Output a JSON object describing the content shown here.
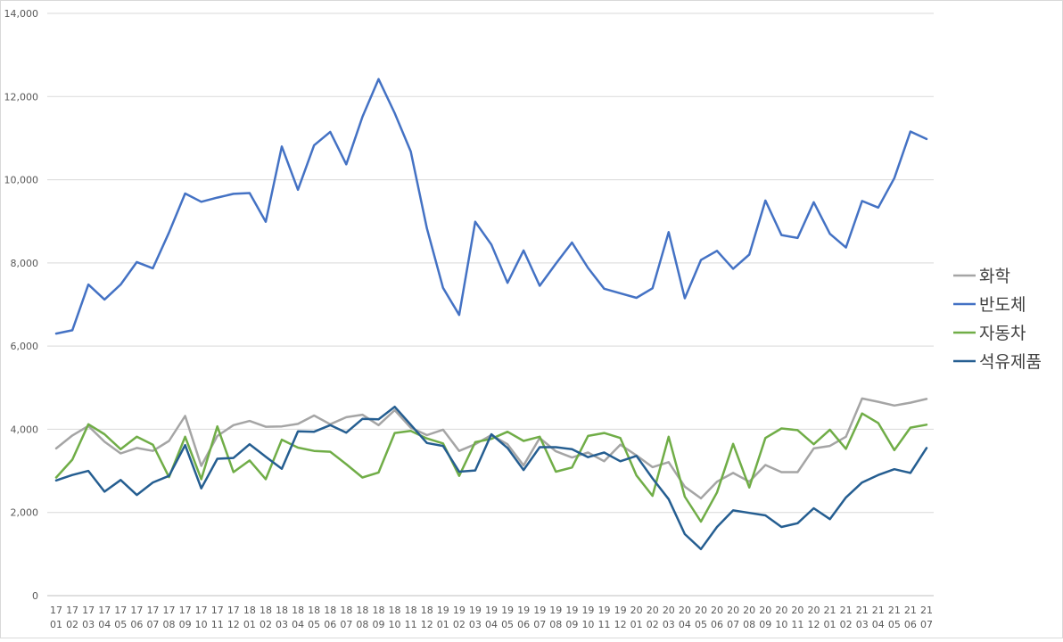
{
  "chart_data": {
    "type": "line",
    "title": "",
    "xlabel": "",
    "ylabel": "",
    "ylim": [
      0,
      14000
    ],
    "yticks": [
      0,
      2000,
      4000,
      6000,
      8000,
      10000,
      12000,
      14000
    ],
    "ytick_labels": [
      "0",
      "2,000",
      "4,000",
      "6,000",
      "8,000",
      "10,000",
      "12,000",
      "14,000"
    ],
    "grid": true,
    "legend_position": "right",
    "categories": [
      [
        "17",
        "01"
      ],
      [
        "17",
        "02"
      ],
      [
        "17",
        "03"
      ],
      [
        "17",
        "04"
      ],
      [
        "17",
        "05"
      ],
      [
        "17",
        "06"
      ],
      [
        "17",
        "07"
      ],
      [
        "17",
        "08"
      ],
      [
        "17",
        "09"
      ],
      [
        "17",
        "10"
      ],
      [
        "17",
        "11"
      ],
      [
        "17",
        "12"
      ],
      [
        "18",
        "01"
      ],
      [
        "18",
        "02"
      ],
      [
        "18",
        "03"
      ],
      [
        "18",
        "04"
      ],
      [
        "18",
        "05"
      ],
      [
        "18",
        "06"
      ],
      [
        "18",
        "07"
      ],
      [
        "18",
        "08"
      ],
      [
        "18",
        "09"
      ],
      [
        "18",
        "10"
      ],
      [
        "18",
        "11"
      ],
      [
        "18",
        "12"
      ],
      [
        "19",
        "01"
      ],
      [
        "19",
        "02"
      ],
      [
        "19",
        "03"
      ],
      [
        "19",
        "04"
      ],
      [
        "19",
        "05"
      ],
      [
        "19",
        "06"
      ],
      [
        "19",
        "07"
      ],
      [
        "19",
        "08"
      ],
      [
        "19",
        "09"
      ],
      [
        "19",
        "10"
      ],
      [
        "19",
        "11"
      ],
      [
        "19",
        "12"
      ],
      [
        "20",
        "01"
      ],
      [
        "20",
        "02"
      ],
      [
        "20",
        "03"
      ],
      [
        "20",
        "04"
      ],
      [
        "20",
        "05"
      ],
      [
        "20",
        "06"
      ],
      [
        "20",
        "07"
      ],
      [
        "20",
        "08"
      ],
      [
        "20",
        "09"
      ],
      [
        "20",
        "10"
      ],
      [
        "20",
        "11"
      ],
      [
        "20",
        "12"
      ],
      [
        "21",
        "01"
      ],
      [
        "21",
        "02"
      ],
      [
        "21",
        "03"
      ],
      [
        "21",
        "04"
      ],
      [
        "21",
        "05"
      ],
      [
        "21",
        "06"
      ],
      [
        "21",
        "07"
      ]
    ],
    "series": [
      {
        "name": "화학",
        "color": "#a5a5a5",
        "values": [
          3540,
          3850,
          4080,
          3700,
          3420,
          3550,
          3480,
          3720,
          4320,
          3120,
          3840,
          4100,
          4200,
          4060,
          4070,
          4130,
          4330,
          4120,
          4290,
          4350,
          4100,
          4460,
          4040,
          3860,
          3990,
          3480,
          3640,
          3860,
          3640,
          3130,
          3790,
          3470,
          3320,
          3440,
          3230,
          3630,
          3370,
          3090,
          3210,
          2620,
          2340,
          2740,
          2950,
          2740,
          3140,
          2970,
          2970,
          3540,
          3600,
          3820,
          4740,
          4660,
          4570,
          4640,
          4730
        ]
      },
      {
        "name": "반도체",
        "color": "#4472c4",
        "values": [
          6300,
          6380,
          7480,
          7120,
          7480,
          8020,
          7870,
          8730,
          9670,
          9470,
          9570,
          9660,
          9680,
          8990,
          10800,
          9760,
          10830,
          11150,
          10370,
          11510,
          12420,
          11600,
          10680,
          8830,
          7400,
          6750,
          8990,
          8440,
          7520,
          8300,
          7450,
          7980,
          8490,
          7880,
          7380,
          7270,
          7160,
          7390,
          8740,
          7150,
          8070,
          8290,
          7860,
          8200,
          9500,
          8670,
          8600,
          9460,
          8700,
          8370,
          9490,
          9330,
          10040,
          11160,
          10980
        ]
      },
      {
        "name": "자동차",
        "color": "#70ad47",
        "values": [
          2840,
          3270,
          4120,
          3880,
          3520,
          3820,
          3630,
          2850,
          3820,
          2800,
          4070,
          2970,
          3250,
          2800,
          3750,
          3560,
          3480,
          3460,
          3160,
          2840,
          2960,
          3910,
          3960,
          3780,
          3660,
          2880,
          3690,
          3770,
          3940,
          3720,
          3820,
          2980,
          3080,
          3840,
          3910,
          3790,
          2890,
          2400,
          3820,
          2380,
          1780,
          2480,
          3650,
          2600,
          3790,
          4020,
          3980,
          3640,
          3990,
          3530,
          4380,
          4150,
          3500,
          4040,
          4110
        ]
      },
      {
        "name": "석유제품",
        "color": "#255e91",
        "values": [
          2770,
          2900,
          3000,
          2500,
          2780,
          2420,
          2720,
          2880,
          3620,
          2580,
          3290,
          3310,
          3640,
          3340,
          3050,
          3950,
          3940,
          4100,
          3920,
          4250,
          4240,
          4540,
          4110,
          3670,
          3600,
          2980,
          3010,
          3880,
          3550,
          3020,
          3570,
          3570,
          3520,
          3330,
          3440,
          3230,
          3360,
          2820,
          2320,
          1480,
          1120,
          1650,
          2050,
          1990,
          1930,
          1650,
          1740,
          2100,
          1840,
          2360,
          2720,
          2900,
          3040,
          2950,
          3550
        ]
      }
    ]
  }
}
